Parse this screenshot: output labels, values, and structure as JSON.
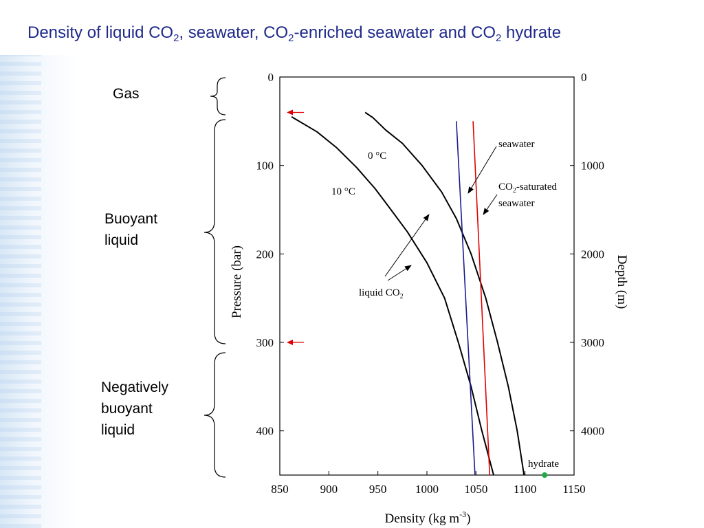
{
  "slide": {
    "title_parts": {
      "p1": "Density of liquid CO",
      "s1": "2",
      "p2": ", seawater, CO",
      "s2": "2",
      "p3": "-enriched seawater and CO",
      "s3": "2",
      "p4": " hydrate"
    },
    "side_labels": {
      "gas": "Gas",
      "buoyant_1": "Buoyant",
      "buoyant_2": "liquid",
      "neg_1": "Negatively",
      "neg_2": "buoyant",
      "neg_3": "liquid"
    }
  },
  "colors": {
    "title": "#1f2a8c",
    "seawater": "#1a1a8c",
    "co2_saturated": "#e00000",
    "liquid_co2": "#000000",
    "hydrate": "#22aa44",
    "arrow_marker": "#e00000"
  },
  "chart_data": {
    "type": "line",
    "xlabel": "Density  (kg m",
    "xlabel_sup": "-3",
    "xlabel_end": ")",
    "ylabel": "Pressure (bar)",
    "ylabel_right": "Depth (m)",
    "xlim": [
      850,
      1150
    ],
    "ylim": [
      0,
      450
    ],
    "y2lim": [
      0,
      4500
    ],
    "x_ticks": [
      850,
      900,
      950,
      1000,
      1050,
      1100,
      1150
    ],
    "y_ticks": [
      0,
      100,
      200,
      300,
      400
    ],
    "y2_ticks": [
      0,
      1000,
      2000,
      3000,
      4000
    ],
    "grid": false,
    "series": [
      {
        "name": "0 oC",
        "kind": "liquid_co2",
        "points": [
          [
            937,
            40
          ],
          [
            945,
            46
          ],
          [
            958,
            60
          ],
          [
            975,
            75
          ],
          [
            995,
            100
          ],
          [
            1015,
            130
          ],
          [
            1030,
            160
          ],
          [
            1045,
            200
          ],
          [
            1060,
            250
          ],
          [
            1072,
            300
          ],
          [
            1083,
            350
          ],
          [
            1092,
            400
          ],
          [
            1099,
            450
          ]
        ]
      },
      {
        "name": "10 oC",
        "kind": "liquid_co2",
        "points": [
          [
            862,
            45
          ],
          [
            888,
            62
          ],
          [
            908,
            80
          ],
          [
            928,
            102
          ],
          [
            947,
            126
          ],
          [
            960,
            145
          ],
          [
            980,
            175
          ],
          [
            1000,
            210
          ],
          [
            1018,
            250
          ],
          [
            1032,
            300
          ],
          [
            1045,
            350
          ],
          [
            1056,
            400
          ],
          [
            1068,
            450
          ]
        ]
      },
      {
        "name": "seawater",
        "kind": "seawater",
        "points": [
          [
            1030,
            50
          ],
          [
            1049,
            450
          ]
        ]
      },
      {
        "name": "CO2-saturated seawater",
        "kind": "co2_saturated",
        "points": [
          [
            1047,
            50
          ],
          [
            1064,
            450
          ]
        ]
      }
    ],
    "hydrate_point": {
      "x": 1120,
      "y": 450,
      "label": "hydrate"
    },
    "annotations": {
      "t0c": "0 °C",
      "t10c": "10 °C",
      "seawater": "seawater",
      "co2sat_1": "CO",
      "co2sat_sub": "2",
      "co2sat_2": "-saturated",
      "co2sat_3": "seawater",
      "liquid_co2": "liquid CO",
      "liquid_co2_sub": "2",
      "hydrate": "hydrate"
    },
    "pressure_markers": [
      40,
      300
    ]
  }
}
